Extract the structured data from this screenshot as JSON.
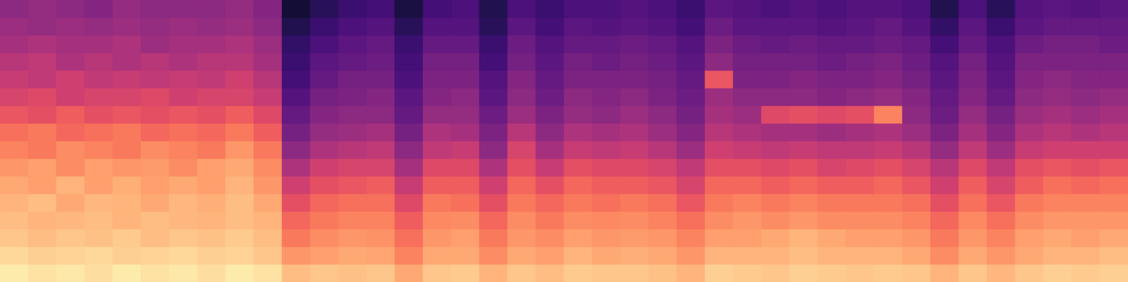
{
  "chart_data": {
    "type": "heatmap",
    "xlim": [
      0,
      40
    ],
    "ylim": [
      0,
      16
    ],
    "zlim": [
      0,
      100
    ],
    "color": "magma",
    "tick_labels": false,
    "z": [
      [
        96,
        92,
        88,
        86,
        84,
        82,
        78,
        74,
        70,
        64,
        58,
        54,
        50,
        46,
        44,
        40
      ],
      [
        94,
        90,
        86,
        84,
        86,
        80,
        80,
        72,
        72,
        62,
        60,
        52,
        52,
        48,
        42,
        42
      ],
      [
        95,
        91,
        88,
        85,
        82,
        84,
        76,
        76,
        68,
        66,
        56,
        56,
        48,
        46,
        44,
        40
      ],
      [
        93,
        92,
        87,
        86,
        85,
        80,
        80,
        74,
        70,
        62,
        58,
        52,
        50,
        46,
        42,
        38
      ],
      [
        96,
        90,
        89,
        84,
        84,
        83,
        78,
        72,
        72,
        64,
        58,
        54,
        48,
        48,
        44,
        42
      ],
      [
        94,
        91,
        86,
        86,
        82,
        80,
        79,
        76,
        68,
        62,
        60,
        52,
        50,
        44,
        42,
        40
      ],
      [
        95,
        92,
        88,
        85,
        85,
        82,
        76,
        74,
        70,
        64,
        56,
        54,
        48,
        46,
        44,
        40
      ],
      [
        93,
        90,
        87,
        84,
        83,
        80,
        80,
        72,
        68,
        62,
        58,
        52,
        50,
        46,
        42,
        40
      ],
      [
        96,
        91,
        89,
        86,
        86,
        84,
        82,
        78,
        72,
        66,
        58,
        56,
        50,
        48,
        44,
        42
      ],
      [
        94,
        88,
        86,
        84,
        82,
        78,
        76,
        72,
        66,
        60,
        54,
        50,
        46,
        44,
        40,
        38
      ],
      [
        86,
        78,
        72,
        68,
        62,
        56,
        48,
        40,
        34,
        30,
        26,
        22,
        20,
        18,
        14,
        10
      ],
      [
        88,
        80,
        76,
        72,
        68,
        62,
        56,
        48,
        42,
        38,
        34,
        30,
        28,
        24,
        20,
        16
      ],
      [
        87,
        82,
        78,
        74,
        70,
        64,
        58,
        50,
        44,
        40,
        36,
        34,
        30,
        28,
        24,
        20
      ],
      [
        88,
        81,
        77,
        74,
        70,
        66,
        58,
        52,
        46,
        40,
        38,
        34,
        32,
        30,
        26,
        22
      ],
      [
        82,
        74,
        70,
        66,
        60,
        54,
        46,
        40,
        34,
        30,
        28,
        24,
        22,
        20,
        16,
        12
      ],
      [
        88,
        82,
        78,
        75,
        72,
        66,
        60,
        52,
        48,
        42,
        38,
        36,
        34,
        30,
        26,
        22
      ],
      [
        89,
        82,
        80,
        76,
        70,
        66,
        60,
        54,
        46,
        42,
        40,
        36,
        34,
        30,
        26,
        24
      ],
      [
        84,
        76,
        72,
        68,
        62,
        56,
        48,
        40,
        36,
        32,
        28,
        26,
        22,
        20,
        16,
        14
      ],
      [
        88,
        82,
        78,
        76,
        72,
        68,
        62,
        58,
        50,
        44,
        40,
        38,
        34,
        32,
        28,
        24
      ],
      [
        86,
        80,
        76,
        72,
        68,
        62,
        54,
        46,
        40,
        36,
        32,
        30,
        28,
        26,
        22,
        20
      ],
      [
        89,
        84,
        80,
        76,
        72,
        68,
        62,
        54,
        48,
        42,
        40,
        36,
        34,
        30,
        28,
        24
      ],
      [
        88,
        82,
        78,
        75,
        70,
        66,
        60,
        52,
        46,
        40,
        38,
        36,
        32,
        30,
        26,
        24
      ],
      [
        88,
        83,
        79,
        76,
        72,
        66,
        60,
        54,
        48,
        44,
        40,
        36,
        34,
        32,
        28,
        26
      ],
      [
        87,
        82,
        78,
        74,
        70,
        64,
        58,
        50,
        44,
        40,
        36,
        34,
        32,
        30,
        26,
        24
      ],
      [
        84,
        78,
        74,
        70,
        64,
        58,
        52,
        44,
        38,
        34,
        32,
        30,
        28,
        26,
        22,
        20
      ],
      [
        90,
        84,
        80,
        76,
        72,
        68,
        62,
        56,
        50,
        46,
        44,
        64,
        40,
        36,
        32,
        28
      ],
      [
        89,
        84,
        80,
        78,
        74,
        68,
        62,
        54,
        48,
        44,
        40,
        36,
        34,
        32,
        28,
        26
      ],
      [
        88,
        84,
        82,
        76,
        72,
        66,
        60,
        52,
        46,
        60,
        40,
        36,
        34,
        30,
        28,
        24
      ],
      [
        90,
        86,
        84,
        78,
        74,
        68,
        62,
        54,
        46,
        62,
        40,
        38,
        34,
        32,
        28,
        26
      ],
      [
        89,
        84,
        82,
        76,
        72,
        66,
        58,
        52,
        44,
        60,
        38,
        36,
        32,
        30,
        26,
        24
      ],
      [
        88,
        84,
        80,
        76,
        72,
        66,
        60,
        52,
        46,
        62,
        40,
        36,
        34,
        30,
        28,
        26
      ],
      [
        89,
        84,
        80,
        76,
        72,
        68,
        62,
        54,
        48,
        74,
        42,
        38,
        36,
        32,
        30,
        26
      ],
      [
        88,
        82,
        78,
        74,
        70,
        64,
        58,
        50,
        44,
        40,
        38,
        34,
        32,
        30,
        26,
        24
      ],
      [
        84,
        76,
        72,
        68,
        62,
        56,
        50,
        42,
        36,
        32,
        30,
        28,
        26,
        22,
        18,
        14
      ],
      [
        88,
        82,
        78,
        75,
        70,
        66,
        60,
        52,
        46,
        42,
        38,
        36,
        34,
        30,
        28,
        24
      ],
      [
        85,
        78,
        74,
        70,
        64,
        58,
        52,
        44,
        38,
        34,
        30,
        28,
        26,
        24,
        20,
        16
      ],
      [
        88,
        82,
        80,
        76,
        72,
        66,
        62,
        54,
        48,
        44,
        40,
        38,
        36,
        32,
        28,
        26
      ],
      [
        90,
        84,
        82,
        78,
        74,
        70,
        64,
        56,
        50,
        46,
        42,
        40,
        36,
        34,
        30,
        28
      ],
      [
        89,
        84,
        80,
        78,
        74,
        68,
        62,
        56,
        48,
        44,
        40,
        38,
        36,
        34,
        30,
        26
      ],
      [
        90,
        86,
        82,
        78,
        74,
        70,
        64,
        56,
        50,
        46,
        42,
        38,
        36,
        32,
        30,
        28
      ]
    ]
  }
}
